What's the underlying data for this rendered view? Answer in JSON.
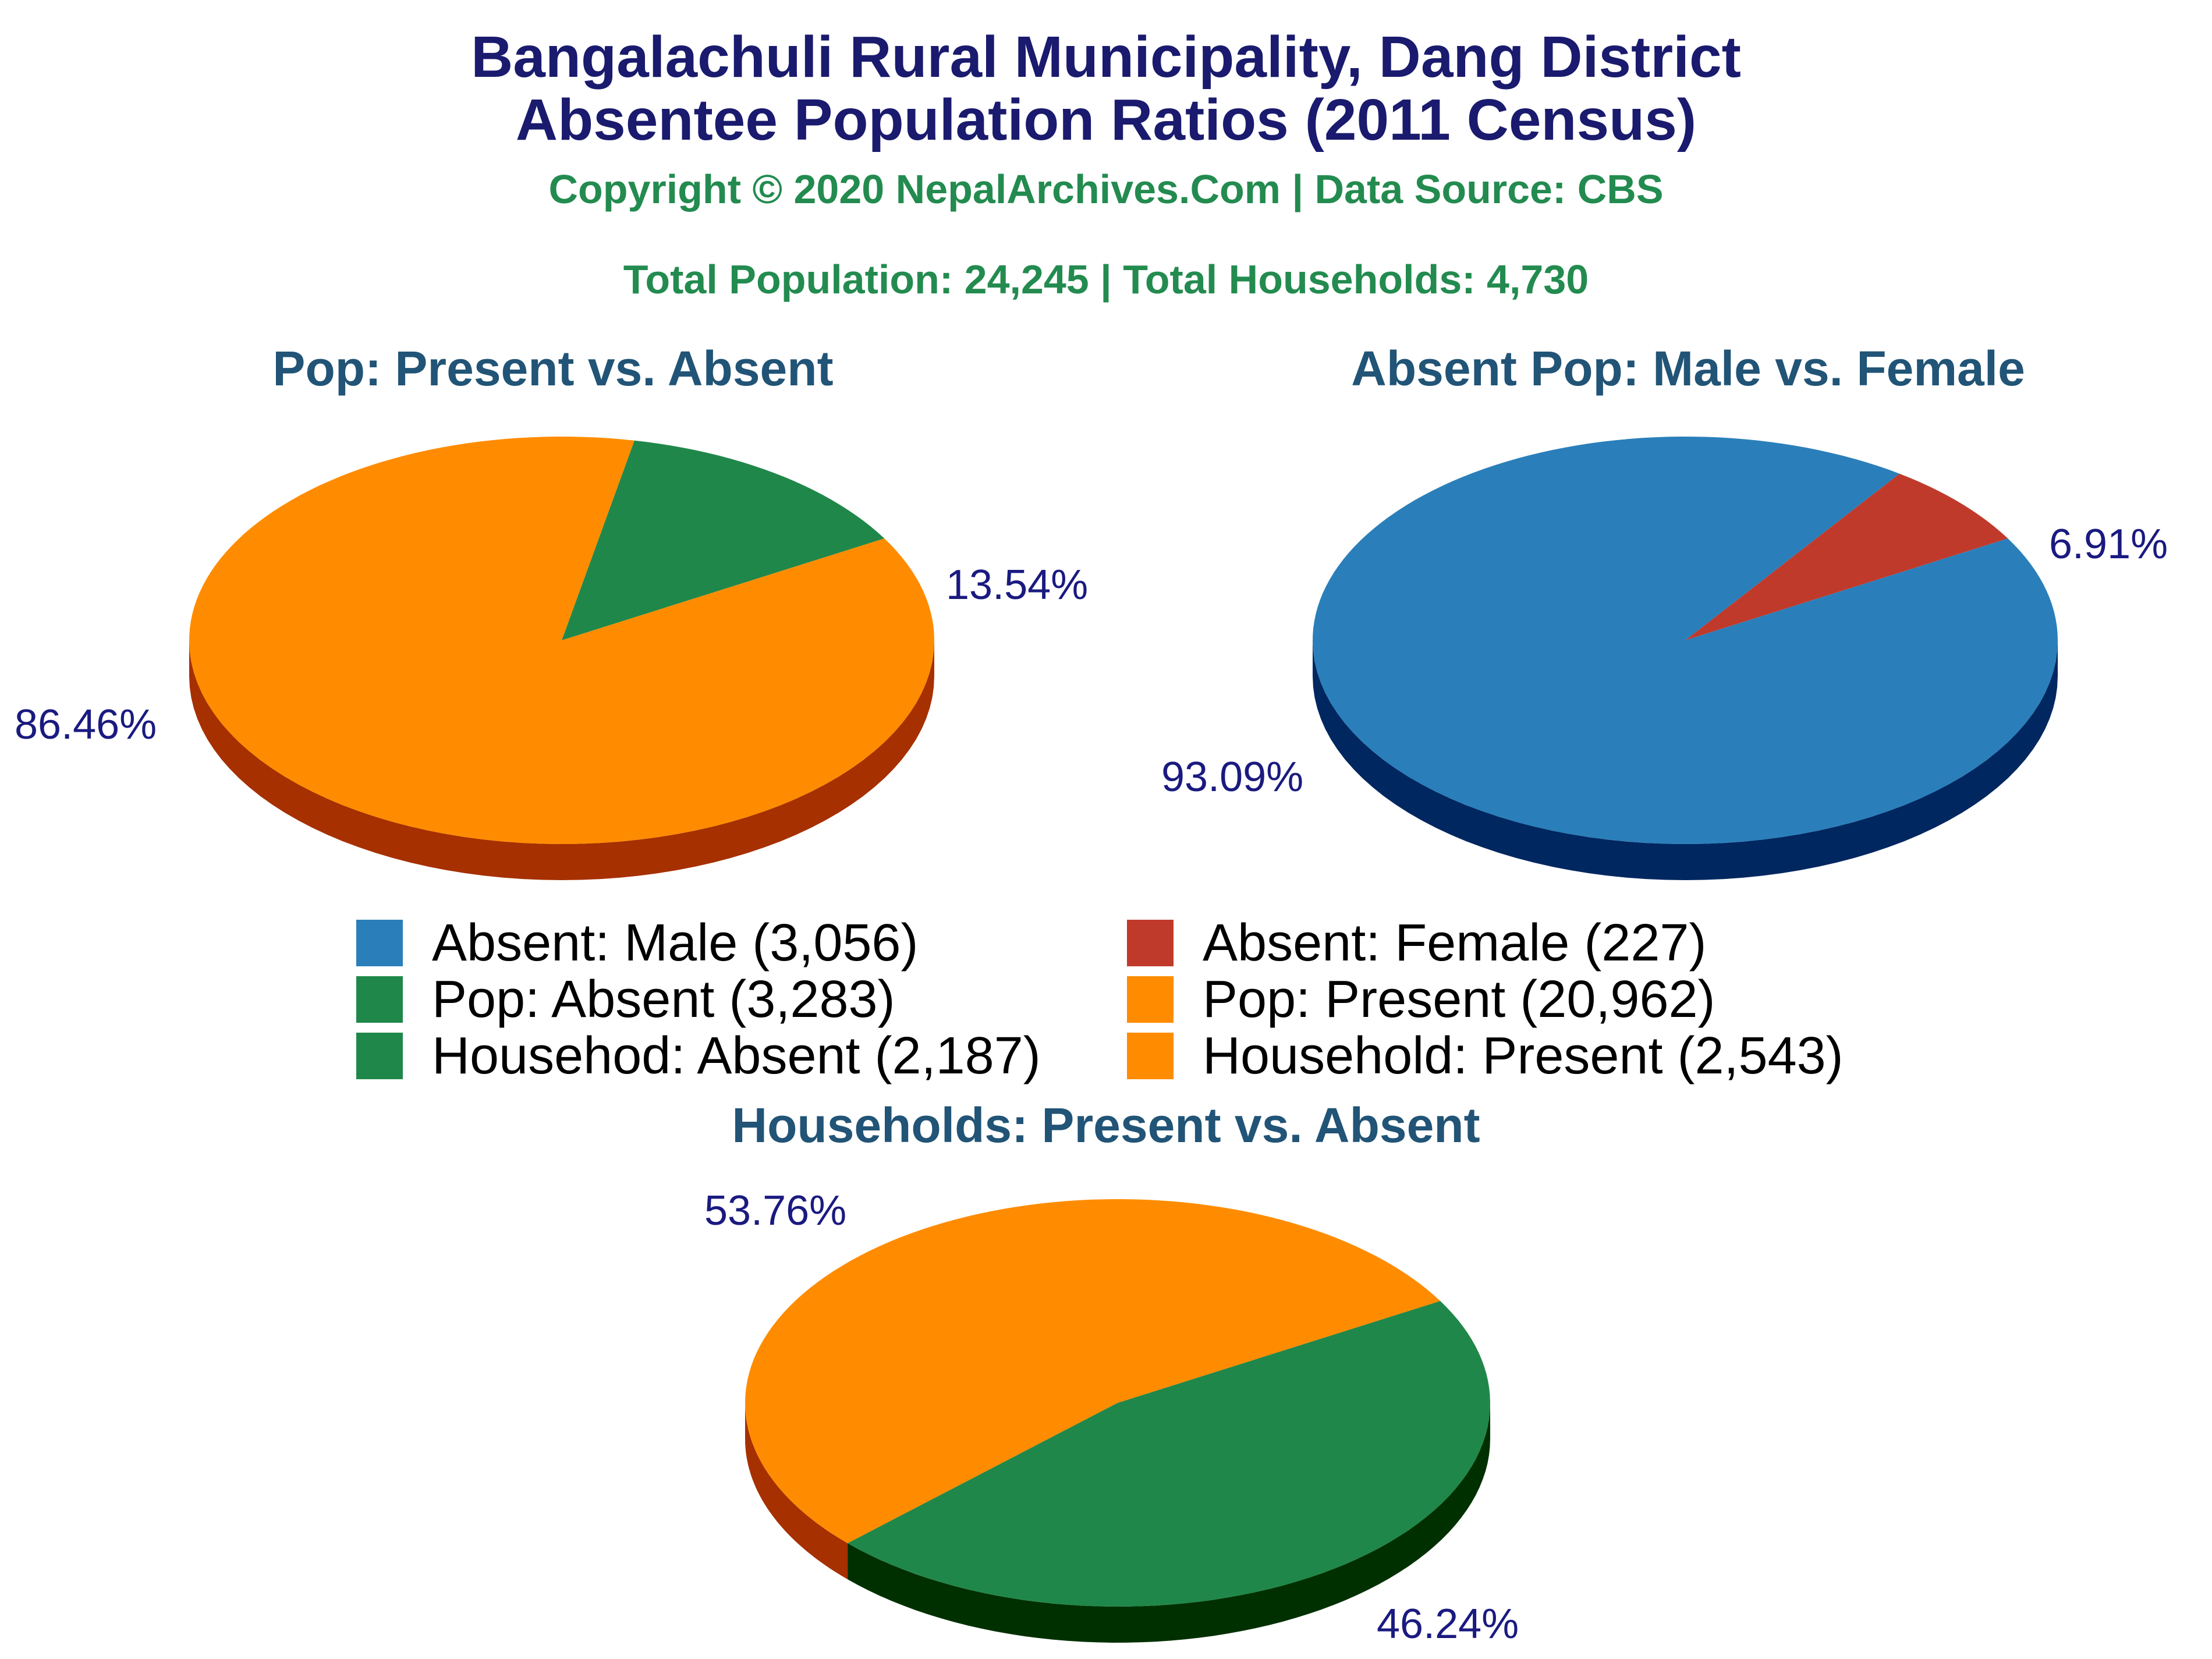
{
  "header": {
    "title_line1": "Bangalachuli Rural Municipality, Dang District",
    "title_line2": "Absentee Population Ratios (2011 Census)",
    "copyright": "Copyright © 2020 NepalArchives.Com | Data Source: CBS",
    "totals": "Total Population: 24,245 | Total Households: 4,730"
  },
  "colors": {
    "orange": "#ff8c00",
    "orange_side": "#a63000",
    "green": "#20874a",
    "green_side": "#003000",
    "blue": "#2a7fba",
    "blue_side": "#002760",
    "red": "#c03a2b",
    "red_side": "#6a1010"
  },
  "chart_data": [
    {
      "type": "pie",
      "title": "Pop: Present vs. Absent",
      "slices": [
        {
          "label": "Pop: Absent",
          "value": 3283,
          "pct_label": "13.54%",
          "color": "#20874a",
          "side_color": "#003000"
        },
        {
          "label": "Pop: Present",
          "value": 20962,
          "pct_label": "86.46%",
          "color": "#ff8c00",
          "side_color": "#a63000"
        }
      ]
    },
    {
      "type": "pie",
      "title": "Absent Pop: Male vs. Female",
      "slices": [
        {
          "label": "Absent: Female",
          "value": 227,
          "pct_label": "6.91%",
          "color": "#c03a2b",
          "side_color": "#6a1010"
        },
        {
          "label": "Absent: Male",
          "value": 3056,
          "pct_label": "93.09%",
          "color": "#2a7fba",
          "side_color": "#002760"
        }
      ]
    },
    {
      "type": "pie",
      "title": "Households: Present vs. Absent",
      "slices": [
        {
          "label": "Household: Present",
          "value": 2543,
          "pct_label": "53.76%",
          "color": "#ff8c00",
          "side_color": "#a63000"
        },
        {
          "label": "Househod: Absent",
          "value": 2187,
          "pct_label": "46.24%",
          "color": "#20874a",
          "side_color": "#003000"
        }
      ]
    }
  ],
  "legend": [
    {
      "label": "Absent: Male (3,056)",
      "color": "#2a7fba"
    },
    {
      "label": "Absent: Female (227)",
      "color": "#c03a2b"
    },
    {
      "label": "Pop: Absent (3,283)",
      "color": "#20874a"
    },
    {
      "label": "Pop: Present (20,962)",
      "color": "#ff8c00"
    },
    {
      "label": "Househod: Absent (2,187)",
      "color": "#20874a"
    },
    {
      "label": "Household: Present (2,543)",
      "color": "#ff8c00"
    }
  ]
}
